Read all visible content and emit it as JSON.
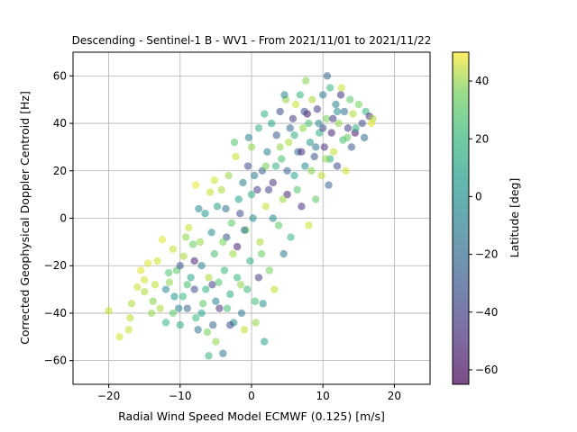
{
  "chart_data": {
    "type": "scatter",
    "title": "Descending - Sentinel-1 B - WV1 - From 2021/11/01 to 2021/11/22",
    "xlabel": "Radial Wind Speed Model ECMWF (0.125) [m/s]",
    "ylabel": "Corrected Geophysical Doppler Centroid [Hz]",
    "xlim": [
      -25,
      25
    ],
    "ylim": [
      -70,
      70
    ],
    "xticks": [
      -20,
      -10,
      0,
      10,
      20
    ],
    "yticks": [
      -60,
      -40,
      -20,
      0,
      20,
      40,
      60
    ],
    "grid": true,
    "colormap": "viridis",
    "point_alpha": 0.55,
    "colorbar": {
      "label": "Latitude [deg]",
      "range": [
        -65,
        50
      ],
      "ticks": [
        -60,
        -40,
        -20,
        0,
        20,
        40
      ]
    },
    "points": [
      [
        -20.0,
        -39,
        40
      ],
      [
        -18.5,
        -50,
        42
      ],
      [
        -17.2,
        -47,
        40
      ],
      [
        -17.0,
        -42,
        38
      ],
      [
        -16.8,
        -36,
        35
      ],
      [
        -16.0,
        -29,
        40
      ],
      [
        -15.5,
        -22,
        45
      ],
      [
        -15.0,
        -26,
        42
      ],
      [
        -14.5,
        -19,
        44
      ],
      [
        -14.0,
        -40,
        30
      ],
      [
        -13.5,
        -28,
        38
      ],
      [
        -13.2,
        -18,
        42
      ],
      [
        -12.8,
        -38,
        35
      ],
      [
        -12.5,
        -9,
        44
      ],
      [
        -12.0,
        -44,
        10
      ],
      [
        -11.5,
        -27,
        30
      ],
      [
        -11.0,
        -13,
        40
      ],
      [
        -10.8,
        -33,
        -5
      ],
      [
        -10.5,
        -22,
        20
      ],
      [
        -10.0,
        -45,
        5
      ],
      [
        -9.5,
        -16,
        35
      ],
      [
        -9.0,
        -38,
        -30
      ],
      [
        -8.8,
        -4,
        40
      ],
      [
        -8.5,
        -25,
        0
      ],
      [
        -8.0,
        -30,
        -40
      ],
      [
        -7.8,
        14,
        45
      ],
      [
        -7.5,
        -47,
        -20
      ],
      [
        -7.2,
        -10,
        30
      ],
      [
        -7.0,
        -20,
        -15
      ],
      [
        -6.8,
        -36,
        20
      ],
      [
        -6.5,
        2,
        -5
      ],
      [
        -6.2,
        -48,
        25
      ],
      [
        -6.0,
        -58,
        10
      ],
      [
        -5.8,
        11,
        40
      ],
      [
        -5.5,
        -28,
        -45
      ],
      [
        -5.2,
        -15,
        15
      ],
      [
        -5.0,
        -52,
        30
      ],
      [
        -4.8,
        5,
        0
      ],
      [
        -4.5,
        -38,
        -50
      ],
      [
        -4.2,
        12,
        35
      ],
      [
        -4.0,
        -57,
        -20
      ],
      [
        -3.8,
        -22,
        10
      ],
      [
        -3.5,
        -8,
        -35
      ],
      [
        -3.2,
        18,
        30
      ],
      [
        -3.0,
        -32,
        5
      ],
      [
        -2.8,
        -2,
        20
      ],
      [
        -2.5,
        -44,
        -10
      ],
      [
        -2.2,
        26,
        40
      ],
      [
        -2.0,
        -12,
        -55
      ],
      [
        -1.8,
        8,
        0
      ],
      [
        -1.5,
        -28,
        30
      ],
      [
        -1.2,
        15,
        -20
      ],
      [
        -1.0,
        -47,
        38
      ],
      [
        -0.8,
        -5,
        25
      ],
      [
        -0.5,
        22,
        -40
      ],
      [
        -0.2,
        -18,
        5
      ],
      [
        0.0,
        30,
        30
      ],
      [
        0.2,
        0,
        -10
      ],
      [
        0.5,
        -35,
        15
      ],
      [
        0.8,
        12,
        -45
      ],
      [
        1.0,
        38,
        10
      ],
      [
        1.2,
        -10,
        35
      ],
      [
        1.5,
        20,
        -30
      ],
      [
        1.8,
        -52,
        0
      ],
      [
        2.0,
        5,
        40
      ],
      [
        2.2,
        28,
        -15
      ],
      [
        2.5,
        -22,
        25
      ],
      [
        2.8,
        40,
        0
      ],
      [
        3.0,
        15,
        -50
      ],
      [
        3.2,
        -30,
        38
      ],
      [
        3.5,
        35,
        -35
      ],
      [
        3.8,
        -3,
        20
      ],
      [
        4.0,
        45,
        -40
      ],
      [
        4.2,
        25,
        15
      ],
      [
        4.5,
        -15,
        -20
      ],
      [
        4.8,
        50,
        30
      ],
      [
        5.0,
        10,
        -55
      ],
      [
        5.2,
        32,
        35
      ],
      [
        5.5,
        -8,
        10
      ],
      [
        5.8,
        42,
        -45
      ],
      [
        6.0,
        18,
        0
      ],
      [
        6.2,
        48,
        40
      ],
      [
        6.5,
        28,
        -25
      ],
      [
        6.8,
        52,
        10
      ],
      [
        7.0,
        5,
        -50
      ],
      [
        7.2,
        38,
        30
      ],
      [
        7.5,
        22,
        -10
      ],
      [
        7.8,
        44,
        -60
      ],
      [
        8.0,
        -3,
        40
      ],
      [
        8.2,
        32,
        -5
      ],
      [
        8.5,
        50,
        35
      ],
      [
        8.8,
        26,
        -35
      ],
      [
        9.0,
        8,
        20
      ],
      [
        9.2,
        46,
        -45
      ],
      [
        9.5,
        36,
        5
      ],
      [
        9.8,
        18,
        38
      ],
      [
        10.0,
        52,
        -20
      ],
      [
        10.2,
        30,
        -50
      ],
      [
        10.5,
        42,
        25
      ],
      [
        10.8,
        14,
        -30
      ],
      [
        11.0,
        55,
        10
      ],
      [
        11.2,
        36,
        -55
      ],
      [
        11.5,
        28,
        40
      ],
      [
        11.8,
        48,
        -15
      ],
      [
        12.0,
        22,
        -40
      ],
      [
        12.2,
        40,
        30
      ],
      [
        12.5,
        52,
        -50
      ],
      [
        12.8,
        33,
        15
      ],
      [
        13.0,
        45,
        -25
      ],
      [
        13.2,
        20,
        42
      ],
      [
        13.5,
        38,
        -45
      ],
      [
        13.8,
        50,
        20
      ],
      [
        14.0,
        30,
        -35
      ],
      [
        14.2,
        44,
        35
      ],
      [
        14.5,
        36,
        -60
      ],
      [
        15.0,
        48,
        25
      ],
      [
        15.5,
        40,
        -40
      ],
      [
        16.0,
        45,
        10
      ],
      [
        16.5,
        43,
        -50
      ],
      [
        17.0,
        42,
        35
      ],
      [
        -12.0,
        -30,
        -10
      ],
      [
        -11.0,
        -40,
        20
      ],
      [
        -10.0,
        -20,
        -35
      ],
      [
        -9.0,
        -28,
        15
      ],
      [
        -8.0,
        -18,
        -55
      ],
      [
        -7.0,
        -40,
        0
      ],
      [
        -6.0,
        -25,
        35
      ],
      [
        -5.0,
        -35,
        -15
      ],
      [
        -4.0,
        -10,
        25
      ],
      [
        -3.0,
        -45,
        -40
      ],
      [
        -2.0,
        -25,
        10
      ],
      [
        -1.0,
        -5,
        -25
      ],
      [
        0.0,
        10,
        5
      ],
      [
        1.0,
        -25,
        -45
      ],
      [
        2.0,
        22,
        25
      ],
      [
        3.0,
        0,
        -10
      ],
      [
        4.0,
        30,
        30
      ],
      [
        5.0,
        20,
        -30
      ],
      [
        6.0,
        35,
        5
      ],
      [
        7.0,
        28,
        -50
      ],
      [
        8.0,
        40,
        15
      ],
      [
        9.0,
        30,
        -20
      ],
      [
        10.0,
        38,
        -40
      ],
      [
        11.0,
        25,
        5
      ],
      [
        12.0,
        45,
        -10
      ],
      [
        -15.0,
        -31,
        35
      ],
      [
        -13.8,
        -35,
        28
      ],
      [
        -11.6,
        -23,
        18
      ],
      [
        -9.6,
        -33,
        12
      ],
      [
        -8.2,
        -11,
        22
      ],
      [
        -6.4,
        -30,
        8
      ],
      [
        -5.6,
        -6,
        -10
      ],
      [
        -4.6,
        -27,
        18
      ],
      [
        -3.6,
        4,
        -25
      ],
      [
        -2.6,
        -15,
        32
      ],
      [
        -1.6,
        2,
        -38
      ],
      [
        -0.6,
        -30,
        12
      ],
      [
        0.4,
        18,
        -20
      ],
      [
        1.4,
        -15,
        22
      ],
      [
        2.4,
        12,
        -42
      ],
      [
        3.4,
        22,
        8
      ],
      [
        4.4,
        8,
        32
      ],
      [
        5.4,
        38,
        -28
      ],
      [
        6.4,
        12,
        18
      ],
      [
        7.4,
        45,
        -38
      ],
      [
        8.4,
        20,
        28
      ],
      [
        9.4,
        40,
        -10
      ],
      [
        10.4,
        25,
        30
      ],
      [
        11.4,
        42,
        -48
      ],
      [
        13.4,
        34,
        22
      ],
      [
        -10.2,
        -38,
        -15
      ],
      [
        -7.8,
        -42,
        12
      ],
      [
        -5.4,
        -45,
        -30
      ],
      [
        -3.4,
        -38,
        15
      ],
      [
        -1.4,
        -40,
        -20
      ],
      [
        0.6,
        -44,
        30
      ],
      [
        1.6,
        -36,
        -8
      ],
      [
        -9.2,
        -8,
        30
      ],
      [
        -7.4,
        4,
        -12
      ],
      [
        -5.2,
        16,
        42
      ],
      [
        -2.4,
        32,
        18
      ],
      [
        -0.4,
        34,
        -15
      ],
      [
        1.8,
        44,
        8
      ],
      [
        4.6,
        52,
        -12
      ],
      [
        7.6,
        58,
        28
      ],
      [
        10.6,
        60,
        -30
      ],
      [
        12.6,
        55,
        40
      ],
      [
        14.6,
        38,
        5
      ],
      [
        15.8,
        34,
        -25
      ],
      [
        16.8,
        40,
        45
      ]
    ]
  }
}
